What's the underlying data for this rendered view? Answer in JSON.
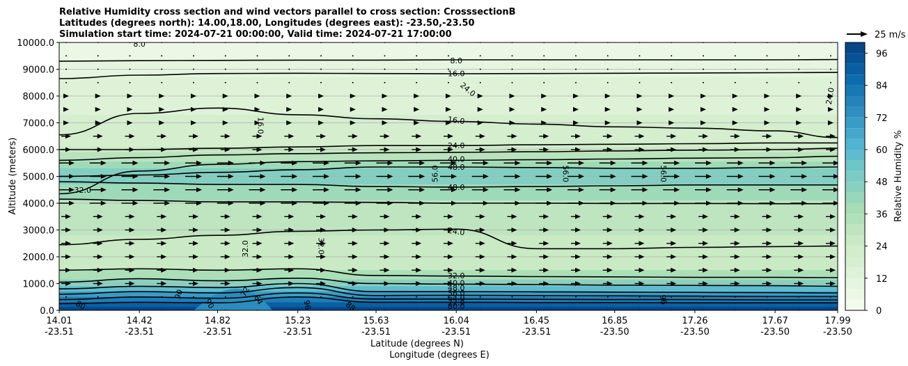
{
  "chart_data": {
    "type": "contour",
    "title_lines": [
      "Relative Humidity cross section and wind vectors parallel to cross section: CrosssectionB",
      "Latitudes (degrees north): 14.00,18.00, Longitudes (degrees east): -23.50,-23.50",
      "Simulation start time: 2024-07-21 00:00:00, Valid time: 2024-07-21 17:00:00"
    ],
    "ylabel": "Altitude (meters)",
    "xlabel_1": "Latitude (degrees N)",
    "xlabel_2": "Longitude (degrees E)",
    "ylim": [
      0,
      10000
    ],
    "y_ticks": [
      "0.0",
      "1000.0",
      "2000.0",
      "3000.0",
      "4000.0",
      "5000.0",
      "6000.0",
      "7000.0",
      "8000.0",
      "9000.0",
      "10000.0"
    ],
    "x_ticks": [
      {
        "lat": "14.01",
        "lon": "-23.51"
      },
      {
        "lat": "14.42",
        "lon": "-23.51"
      },
      {
        "lat": "14.82",
        "lon": "-23.51"
      },
      {
        "lat": "15.23",
        "lon": "-23.51"
      },
      {
        "lat": "15.63",
        "lon": "-23.51"
      },
      {
        "lat": "16.04",
        "lon": "-23.51"
      },
      {
        "lat": "16.45",
        "lon": "-23.51"
      },
      {
        "lat": "16.85",
        "lon": "-23.50"
      },
      {
        "lat": "17.26",
        "lon": "-23.50"
      },
      {
        "lat": "17.67",
        "lon": "-23.50"
      },
      {
        "lat": "17.99",
        "lon": "-23.50"
      }
    ],
    "colorbar": {
      "label": "Relative Humidity %",
      "ticks": [
        "0",
        "12",
        "24",
        "36",
        "48",
        "60",
        "72",
        "84",
        "96"
      ],
      "levels": [
        0,
        4,
        8,
        12,
        16,
        20,
        24,
        28,
        32,
        36,
        40,
        44,
        48,
        52,
        56,
        60,
        64,
        68,
        72,
        76,
        80,
        84,
        88,
        92,
        96,
        100
      ],
      "colormap": "GnBu"
    },
    "quiver_key": {
      "label": "25 m/s"
    },
    "grid": "horizontal",
    "contour_lines": [
      {
        "level": "8.0",
        "y": [
          9300,
          9320,
          9330,
          9340,
          9340,
          9350,
          9350,
          9350,
          9350,
          9350,
          9360
        ]
      },
      {
        "level": "16.0",
        "y": [
          8650,
          8780,
          8840,
          8850,
          8840,
          8830,
          8840,
          8850,
          8860,
          8870,
          8880
        ]
      },
      {
        "level": "16.0",
        "y": [
          6550,
          7350,
          7550,
          7300,
          7150,
          7050,
          6950,
          6850,
          6800,
          6700,
          6450
        ]
      },
      {
        "level": "24.0",
        "y": [
          6000,
          6000,
          6050,
          6100,
          6150,
          6150,
          6180,
          6200,
          6220,
          6250,
          6250
        ]
      },
      {
        "level": "32.0",
        "y": [
          5600,
          5700,
          5800,
          5850,
          5880,
          5900,
          5920,
          5950,
          5980,
          6000,
          6050
        ]
      },
      {
        "level": "40.0",
        "y": [
          4350,
          5200,
          5450,
          5550,
          5580,
          5600,
          5620,
          5650,
          5680,
          5700,
          5750
        ]
      },
      {
        "level": "48.0",
        "y": [
          5000,
          5050,
          5150,
          5250,
          5350,
          5350,
          5330,
          5300,
          5300,
          5330,
          5350
        ]
      },
      {
        "level": "48.0",
        "y": [
          4800,
          4750,
          4700,
          4700,
          4620,
          4600,
          4620,
          4650,
          4680,
          4680,
          4680
        ]
      },
      {
        "level": "40.0",
        "y": [
          4150,
          4100,
          4050,
          4050,
          4030,
          4000,
          4000,
          3990,
          3990,
          3980,
          3980
        ]
      },
      {
        "level": "24.0",
        "y": [
          2450,
          2650,
          2800,
          2950,
          3000,
          3030,
          2300,
          2300,
          2350,
          2380,
          2400
        ]
      },
      {
        "level": "32.0",
        "y": [
          1500,
          1550,
          1500,
          1550,
          1300,
          1280,
          1260,
          1250,
          1230,
          1230,
          1220
        ]
      },
      {
        "level": "40.0",
        "y": [
          1050,
          1180,
          1100,
          1200,
          1000,
          980,
          960,
          940,
          930,
          920,
          900
        ]
      },
      {
        "level": "48.0",
        "y": [
          800,
          900,
          850,
          1000,
          700,
          700,
          690,
          680,
          670,
          660,
          650
        ]
      },
      {
        "level": "56.0",
        "y": [
          600,
          700,
          650,
          850,
          550,
          560,
          550,
          540,
          530,
          520,
          520
        ]
      },
      {
        "level": "64.0",
        "y": [
          400,
          500,
          450,
          650,
          420,
          420,
          410,
          400,
          400,
          390,
          390
        ]
      },
      {
        "level": "72.0",
        "y": [
          250,
          300,
          280,
          500,
          300,
          300,
          290,
          290,
          280,
          280,
          280
        ]
      }
    ],
    "contour_labels": [
      {
        "text": "8.0",
        "x": 14.42,
        "y": 9950,
        "rotate": 0
      },
      {
        "text": "8.0",
        "x": 16.04,
        "y": 9330,
        "rotate": 0
      },
      {
        "text": "16.0",
        "x": 16.04,
        "y": 8850,
        "rotate": 0
      },
      {
        "text": "24.0",
        "x": 16.1,
        "y": 8250,
        "rotate": 40
      },
      {
        "text": "24.0",
        "x": 17.95,
        "y": 8000,
        "rotate": -80
      },
      {
        "text": "16.0",
        "x": 15.04,
        "y": 6900,
        "rotate": 90
      },
      {
        "text": "16.0",
        "x": 16.04,
        "y": 7100,
        "rotate": 8
      },
      {
        "text": "24.0",
        "x": 16.04,
        "y": 6150,
        "rotate": 0
      },
      {
        "text": "40.0",
        "x": 16.04,
        "y": 5650,
        "rotate": 0
      },
      {
        "text": "48.0",
        "x": 16.04,
        "y": 5350,
        "rotate": 0
      },
      {
        "text": "48.0",
        "x": 16.04,
        "y": 4600,
        "rotate": 0
      },
      {
        "text": "56.0",
        "x": 15.93,
        "y": 5100,
        "rotate": -90
      },
      {
        "text": "56.0",
        "x": 16.6,
        "y": 5100,
        "rotate": 90
      },
      {
        "text": "56.0",
        "x": 17.1,
        "y": 5100,
        "rotate": 90
      },
      {
        "text": "32.0",
        "x": 14.13,
        "y": 4500,
        "rotate": 0
      },
      {
        "text": "32.0",
        "x": 14.96,
        "y": 2300,
        "rotate": -90
      },
      {
        "text": "32.0",
        "x": 15.35,
        "y": 2400,
        "rotate": 90
      },
      {
        "text": "24.0",
        "x": 16.04,
        "y": 2950,
        "rotate": 8
      },
      {
        "text": "32.0",
        "x": 16.04,
        "y": 1300,
        "rotate": 0
      },
      {
        "text": "40.0",
        "x": 16.04,
        "y": 1030,
        "rotate": 0
      },
      {
        "text": "48.0",
        "x": 16.04,
        "y": 850,
        "rotate": 0
      },
      {
        "text": "56.0",
        "x": 16.04,
        "y": 650,
        "rotate": 0
      },
      {
        "text": "64.0",
        "x": 16.04,
        "y": 470,
        "rotate": 0
      },
      {
        "text": "72.0",
        "x": 16.04,
        "y": 300,
        "rotate": 0
      },
      {
        "text": "80.0",
        "x": 16.04,
        "y": 150,
        "rotate": 0
      },
      {
        "text": "80",
        "x": 14.12,
        "y": 200,
        "rotate": 30
      },
      {
        "text": "90",
        "x": 14.62,
        "y": 600,
        "rotate": -70
      },
      {
        "text": "90",
        "x": 14.78,
        "y": 250,
        "rotate": 60
      },
      {
        "text": "72",
        "x": 14.96,
        "y": 700,
        "rotate": -60
      },
      {
        "text": "64",
        "x": 15.03,
        "y": 400,
        "rotate": 60
      },
      {
        "text": "96",
        "x": 15.28,
        "y": 200,
        "rotate": 80
      },
      {
        "text": "88",
        "x": 15.5,
        "y": 150,
        "rotate": 40
      },
      {
        "text": "96",
        "x": 17.1,
        "y": 400,
        "rotate": 80
      }
    ]
  }
}
